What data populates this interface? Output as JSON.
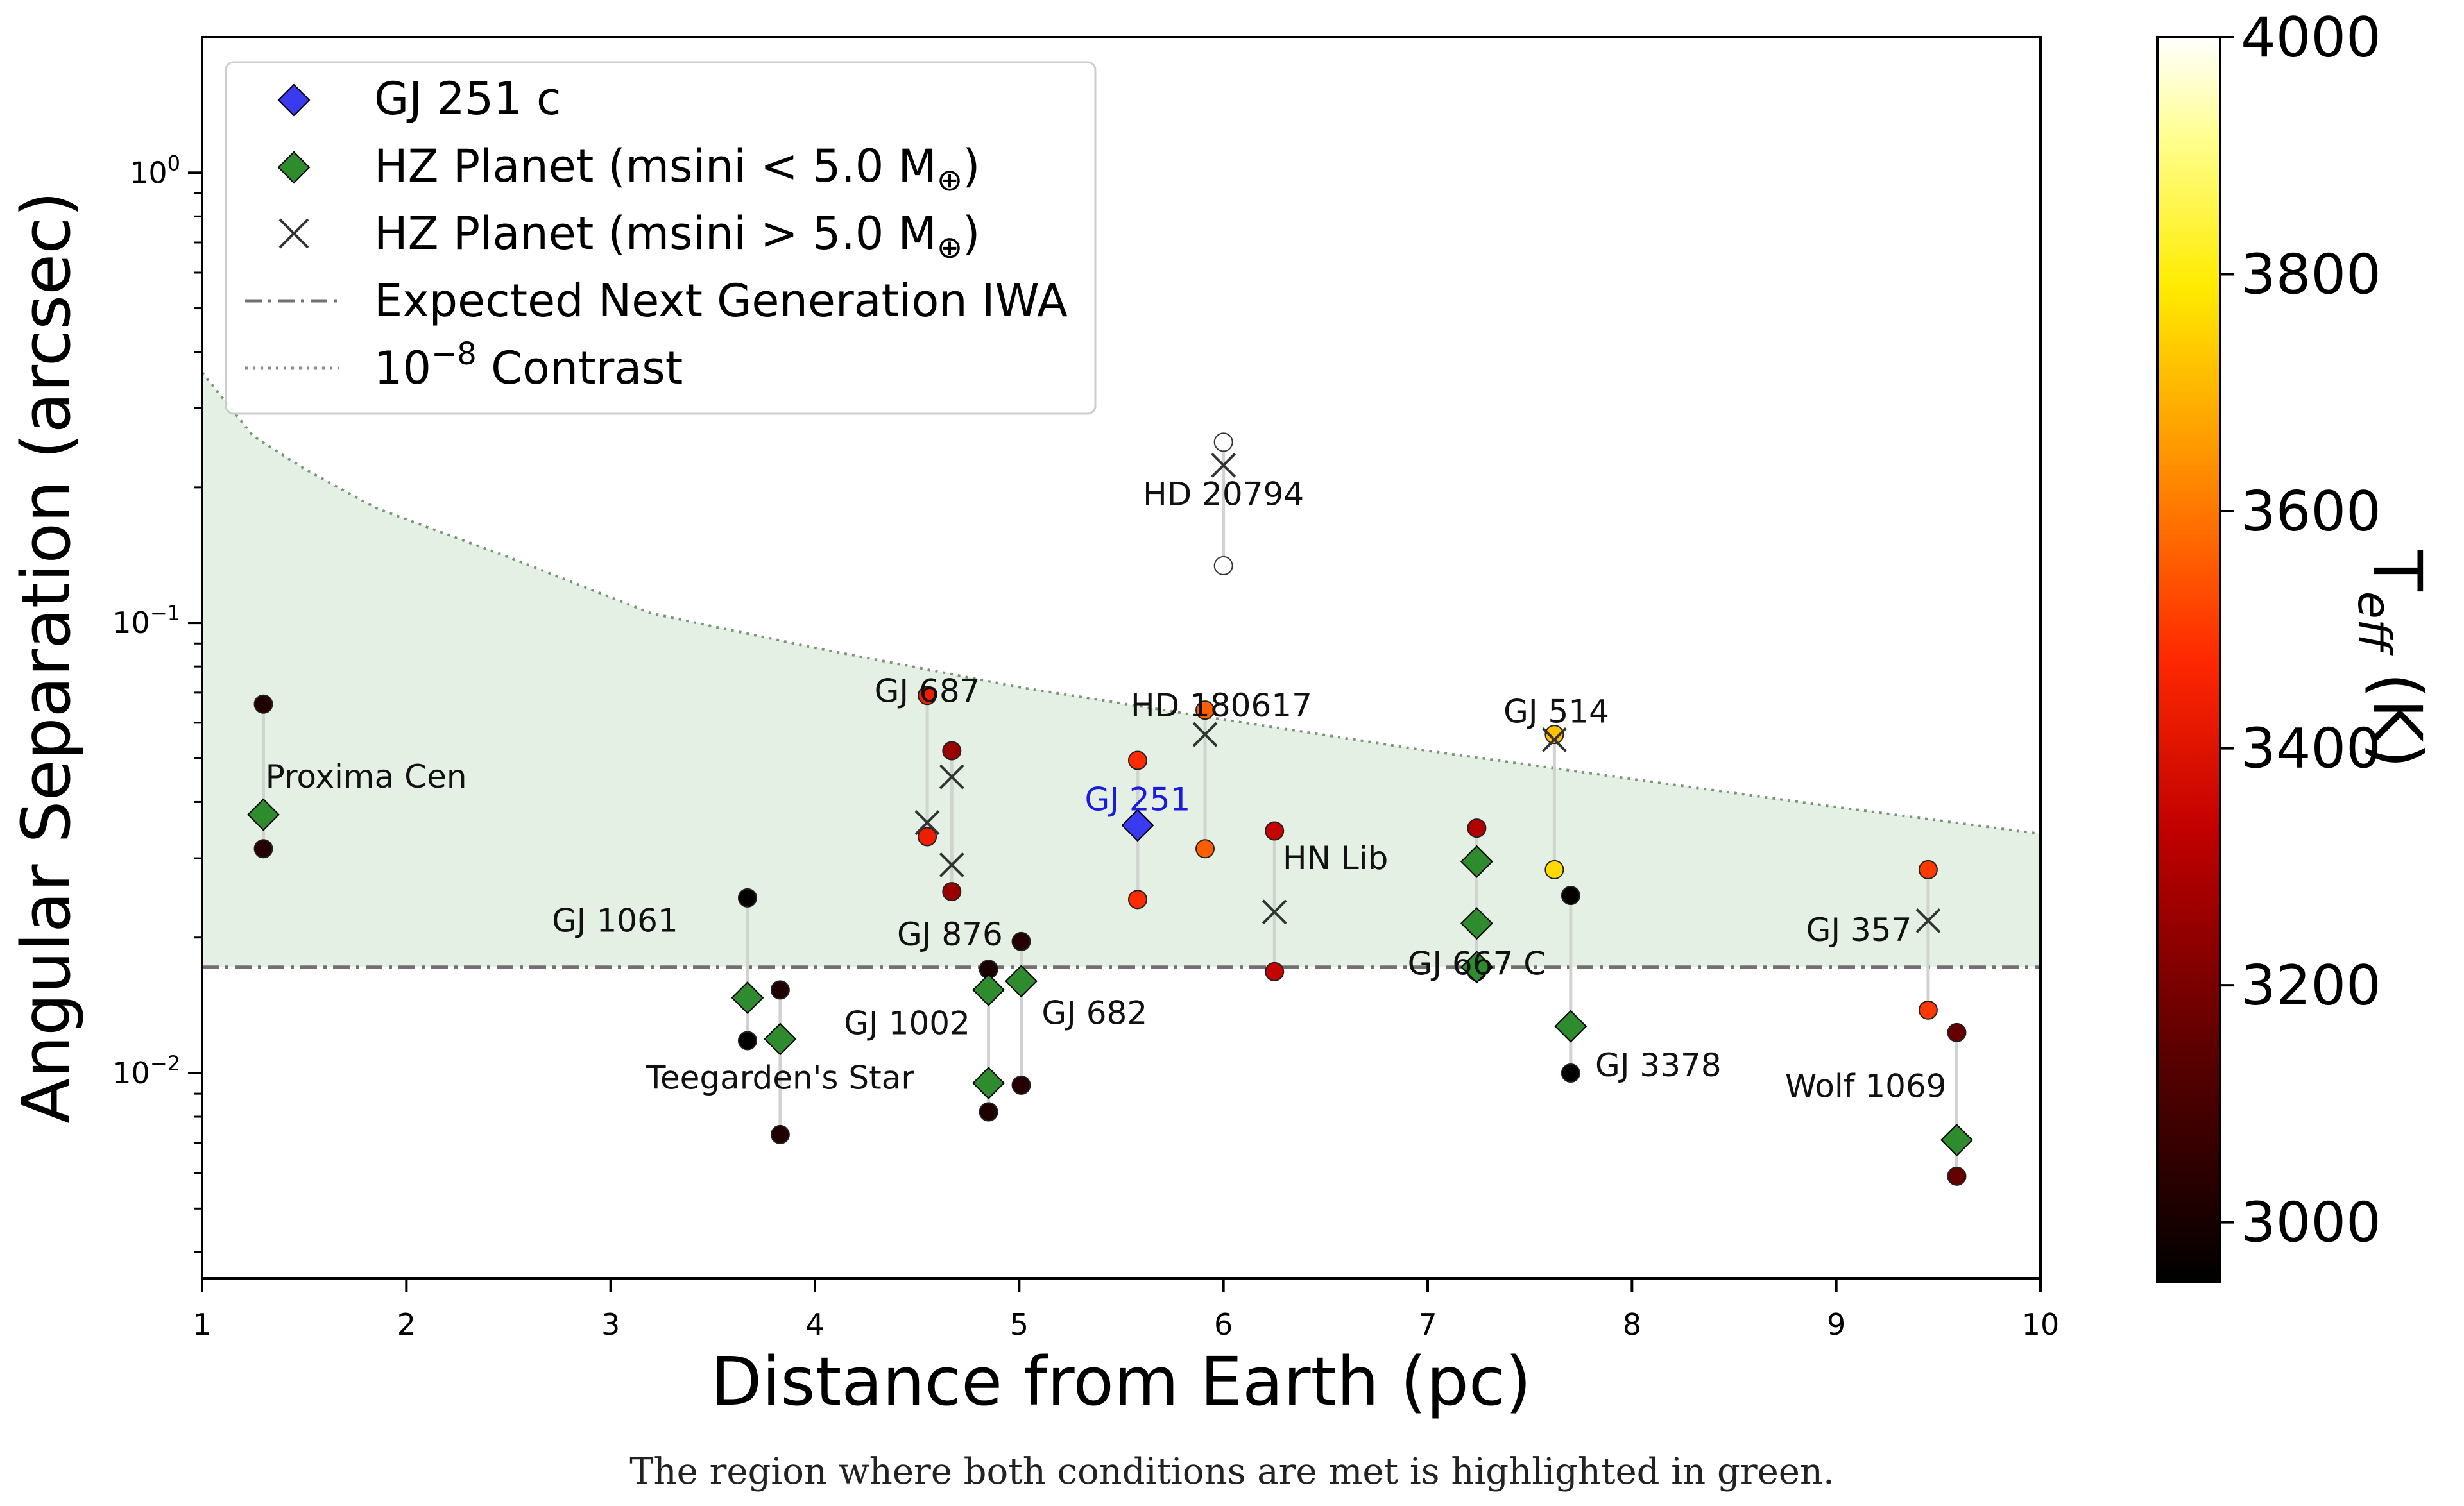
{
  "caption": "The region where both conditions are met is highlighted in green.",
  "colors": {
    "hz_fill": "#e4f0e4",
    "contrast_line": "#7a947a",
    "iwa_line": "#707070",
    "gj251_marker": "#3a3af0",
    "gj251_label": "#1a1ae0",
    "hz_marker": "#2e8b2e",
    "connector": "#cfd4cf"
  },
  "chart_data": {
    "type": "scatter",
    "xlabel": "Distance from Earth (pc)",
    "ylabel": "Angular Separation (arcsec)",
    "xlim": [
      1,
      10
    ],
    "ylim": [
      0.0035,
      2.0
    ],
    "yscale": "log",
    "x_ticks": [
      1,
      2,
      3,
      4,
      5,
      6,
      7,
      8,
      9,
      10
    ],
    "y_ticks": [
      {
        "value": 1.0,
        "base": "10",
        "exp": "0"
      },
      {
        "value": 0.1,
        "base": "10",
        "exp": "−1"
      },
      {
        "value": 0.01,
        "base": "10",
        "exp": "−2"
      }
    ],
    "colorbar": {
      "label_main": "T",
      "label_sub": "eff",
      "label_unit": " (K)",
      "range": [
        2950,
        4000
      ],
      "ticks": [
        3000,
        3200,
        3400,
        3600,
        3800,
        4000
      ]
    },
    "legend": {
      "placement": "top-left",
      "items": [
        {
          "marker": "diamond-blue",
          "label": "GJ 251 c"
        },
        {
          "marker": "diamond-green",
          "label": "HZ Planet (msini < 5.0 M",
          "sub": "⊕",
          "tail": ")"
        },
        {
          "marker": "x",
          "label": "HZ Planet (msini > 5.0 M",
          "sub": "⊕",
          "tail": ")"
        },
        {
          "marker": "dashdot",
          "label": "Expected Next Generation IWA"
        },
        {
          "marker": "dotted",
          "label": "10",
          "sup": "−8",
          "tail": " Contrast"
        }
      ]
    },
    "iwa_arcsec": 0.0172,
    "contrast_curve": {
      "x": [
        1.0,
        1.25,
        1.5,
        1.85,
        2.5,
        3.2,
        4.0,
        5.0,
        6.0,
        7.0,
        8.0,
        9.0,
        10.0
      ],
      "y": [
        0.36,
        0.26,
        0.22,
        0.18,
        0.14,
        0.105,
        0.088,
        0.072,
        0.061,
        0.052,
        0.045,
        0.039,
        0.034
      ]
    },
    "systems": [
      {
        "name": "Proxima Cen",
        "label": "Proxima Cen",
        "x": 1.3,
        "anchor": "start",
        "lx": 1.31,
        "ly": 0.0455,
        "ranges": [
          {
            "top": 0.066,
            "bottom": 0.0315,
            "ttop": 3020,
            "tbot": 3030
          }
        ],
        "planets": [
          {
            "y": 0.0375,
            "marker": "diamond"
          }
        ]
      },
      {
        "name": "GJ 1061",
        "label": "GJ 1061",
        "x": 3.67,
        "anchor": "end",
        "lx": 3.33,
        "ly": 0.0218,
        "ranges": [
          {
            "top": 0.0245,
            "bottom": 0.0118,
            "ttop": 2960,
            "tbot": 2960
          }
        ],
        "planets": [
          {
            "y": 0.0147,
            "marker": "diamond"
          }
        ]
      },
      {
        "name": "Teegarden's Star",
        "label": "Teegarden's Star",
        "x": 3.83,
        "anchor": "middle",
        "lx": 3.83,
        "ly": 0.00975,
        "ranges": [
          {
            "top": 0.0153,
            "bottom": 0.0073,
            "ttop": 3020,
            "tbot": 3020
          }
        ],
        "planets": [
          {
            "y": 0.0119,
            "marker": "diamond"
          }
        ]
      },
      {
        "name": "GJ 687",
        "label": "GJ 687",
        "x": 4.55,
        "anchor": "middle",
        "lx": 4.55,
        "ly": 0.0705,
        "ranges": [
          {
            "top": 0.069,
            "bottom": 0.0335,
            "ttop": 3440,
            "tbot": 3440
          }
        ],
        "planets": [
          {
            "y": 0.036,
            "marker": "x"
          }
        ]
      },
      {
        "name": "GJ 876",
        "label": "GJ 876",
        "x": 4.67,
        "anchor": "end",
        "lx": 4.92,
        "ly": 0.0203,
        "ranges": [
          {
            "top": 0.052,
            "bottom": 0.0253,
            "ttop": 3260,
            "tbot": 3260
          }
        ],
        "planets": [
          {
            "y": 0.0455,
            "marker": "x"
          },
          {
            "y": 0.029,
            "marker": "x"
          }
        ]
      },
      {
        "name": "GJ 1002",
        "label": "GJ 1002",
        "x": 4.85,
        "anchor": "end",
        "lx": 4.76,
        "ly": 0.0129,
        "ranges": [
          {
            "top": 0.017,
            "bottom": 0.0082,
            "ttop": 3010,
            "tbot": 3010
          }
        ],
        "planets": [
          {
            "y": 0.0153,
            "marker": "diamond"
          },
          {
            "y": 0.0095,
            "marker": "diamond"
          }
        ]
      },
      {
        "name": "GJ 682",
        "label": "GJ 682",
        "x": 5.01,
        "anchor": "start",
        "lx": 5.11,
        "ly": 0.0136,
        "ranges": [
          {
            "top": 0.0196,
            "bottom": 0.0094,
            "ttop": 3030,
            "tbot": 3030
          }
        ],
        "planets": [
          {
            "y": 0.016,
            "marker": "diamond"
          }
        ]
      },
      {
        "name": "GJ 251",
        "label": "GJ 251",
        "x": 5.58,
        "anchor": "middle",
        "lx": 5.58,
        "ly": 0.0405,
        "label_blue": true,
        "ranges": [
          {
            "top": 0.0495,
            "bottom": 0.0243,
            "ttop": 3480,
            "tbot": 3480
          }
        ],
        "planets": [
          {
            "y": 0.0355,
            "marker": "diamond-blue"
          }
        ]
      },
      {
        "name": "HD 180617",
        "label": "HD 180617",
        "x": 5.91,
        "anchor": "middle",
        "lx": 5.99,
        "ly": 0.0655,
        "ranges": [
          {
            "top": 0.064,
            "bottom": 0.0315,
            "ttop": 3560,
            "tbot": 3560
          }
        ],
        "planets": [
          {
            "y": 0.0565,
            "marker": "x"
          }
        ]
      },
      {
        "name": "HD 20794",
        "label": "HD 20794",
        "x": 6.0,
        "anchor": "middle",
        "lx": 6.0,
        "ly": 0.193,
        "ranges": [
          {
            "top": 0.252,
            "bottom": 0.134,
            "ttop": 4000,
            "tbot": 4000
          }
        ],
        "planets": [
          {
            "y": 0.224,
            "marker": "x"
          }
        ]
      },
      {
        "name": "HN Lib",
        "label": "HN Lib",
        "x": 6.25,
        "anchor": "start",
        "lx": 6.29,
        "ly": 0.03,
        "ranges": [
          {
            "top": 0.0345,
            "bottom": 0.0168,
            "ttop": 3340,
            "tbot": 3340
          }
        ],
        "planets": [
          {
            "y": 0.0228,
            "marker": "x"
          }
        ]
      },
      {
        "name": "GJ 667 C",
        "label": "GJ 667 C",
        "x": 7.24,
        "anchor": "middle",
        "lx": 7.24,
        "ly": 0.0175,
        "ranges": [
          {
            "top": 0.035,
            "bottom": 0.0168,
            "ttop": 3300,
            "tbot": 3040
          }
        ],
        "planets": [
          {
            "y": 0.0295,
            "marker": "diamond"
          },
          {
            "y": 0.0215,
            "marker": "diamond"
          },
          {
            "y": 0.0172,
            "marker": "diamond"
          }
        ]
      },
      {
        "name": "GJ 514",
        "label": "GJ 514",
        "x": 7.62,
        "anchor": "middle",
        "lx": 7.63,
        "ly": 0.0635,
        "ranges": [
          {
            "top": 0.0565,
            "bottom": 0.0283,
            "ttop": 3720,
            "tbot": 3760
          }
        ],
        "planets": [
          {
            "y": 0.055,
            "marker": "x"
          }
        ]
      },
      {
        "name": "GJ 3378",
        "label": "GJ 3378",
        "x": 7.7,
        "anchor": "start",
        "lx": 7.82,
        "ly": 0.0104,
        "ranges": [
          {
            "top": 0.0248,
            "bottom": 0.01,
            "ttop": 2960,
            "tbot": 2960
          }
        ],
        "planets": [
          {
            "y": 0.0127,
            "marker": "diamond"
          }
        ]
      },
      {
        "name": "GJ 357",
        "label": "GJ 357",
        "x": 9.45,
        "anchor": "end",
        "lx": 9.37,
        "ly": 0.0208,
        "ranges": [
          {
            "top": 0.0283,
            "bottom": 0.0138,
            "ttop": 3500,
            "tbot": 3500
          }
        ],
        "planets": [
          {
            "y": 0.0218,
            "marker": "x"
          }
        ]
      },
      {
        "name": "Wolf 1069",
        "label": "Wolf 1069",
        "x": 9.59,
        "anchor": "end",
        "lx": 9.54,
        "ly": 0.00935,
        "ranges": [
          {
            "top": 0.0123,
            "bottom": 0.0059,
            "ttop": 3160,
            "tbot": 3160
          }
        ],
        "planets": [
          {
            "y": 0.0071,
            "marker": "diamond"
          }
        ]
      }
    ]
  }
}
